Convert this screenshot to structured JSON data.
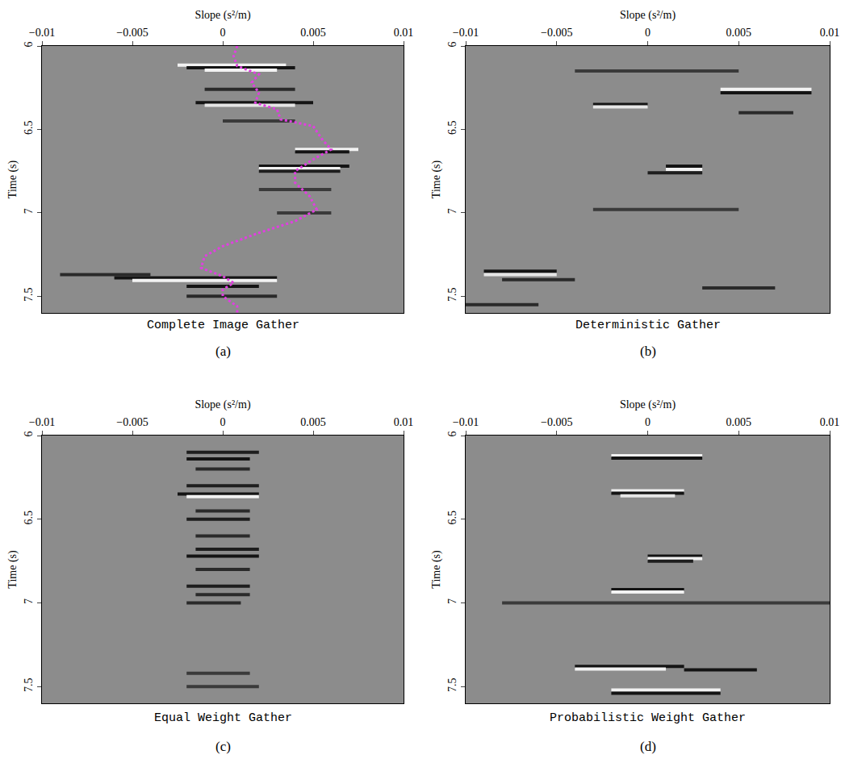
{
  "chart_data": [
    {
      "type": "image",
      "title": "Complete Image Gather",
      "panel": "(a)",
      "xlabel": "Slope (s²/m)",
      "ylabel": "Time (s)",
      "xlim": [
        -0.01,
        0.01
      ],
      "ylim": [
        6,
        7.6
      ],
      "xticks": [
        {
          "value": -0.01,
          "label": "−0.01"
        },
        {
          "value": -0.005,
          "label": "−0.005"
        },
        0,
        0.005,
        0.01
      ],
      "yticks": [
        6,
        6.5,
        7,
        7.5
      ],
      "events": [
        {
          "time": 6.115,
          "slope": [
            -0.0025,
            0.0035
          ],
          "color": "#f2f2f2"
        },
        {
          "time": 6.13,
          "slope": [
            -0.002,
            0.004
          ],
          "color": "#141414"
        },
        {
          "time": 6.145,
          "slope": [
            -0.001,
            0.003
          ],
          "color": "#f2f2f2"
        },
        {
          "time": 6.26,
          "slope": [
            -0.001,
            0.004
          ],
          "color": "#2a2a2a"
        },
        {
          "time": 6.34,
          "slope": [
            -0.0015,
            0.005
          ],
          "color": "#141414"
        },
        {
          "time": 6.355,
          "slope": [
            -0.001,
            0.004
          ],
          "color": "#e6e6e6"
        },
        {
          "time": 6.45,
          "slope": [
            0.0,
            0.004
          ],
          "color": "#3a3a3a"
        },
        {
          "time": 6.62,
          "slope": [
            0.004,
            0.0075
          ],
          "color": "#f2f2f2"
        },
        {
          "time": 6.635,
          "slope": [
            0.004,
            0.007
          ],
          "color": "#141414"
        },
        {
          "time": 6.72,
          "slope": [
            0.002,
            0.007
          ],
          "color": "#141414"
        },
        {
          "time": 6.735,
          "slope": [
            0.002,
            0.0065
          ],
          "color": "#f2f2f2"
        },
        {
          "time": 6.75,
          "slope": [
            0.002,
            0.0065
          ],
          "color": "#1e1e1e"
        },
        {
          "time": 6.86,
          "slope": [
            0.002,
            0.006
          ],
          "color": "#3a3a3a"
        },
        {
          "time": 7.0,
          "slope": [
            0.003,
            0.006
          ],
          "color": "#3a3a3a"
        },
        {
          "time": 7.37,
          "slope": [
            -0.009,
            -0.004
          ],
          "color": "#2a2a2a"
        },
        {
          "time": 7.39,
          "slope": [
            -0.006,
            0.003
          ],
          "color": "#141414"
        },
        {
          "time": 7.405,
          "slope": [
            -0.005,
            0.003
          ],
          "color": "#f2f2f2"
        },
        {
          "time": 7.44,
          "slope": [
            -0.002,
            0.002
          ],
          "color": "#141414"
        },
        {
          "time": 7.5,
          "slope": [
            -0.002,
            0.003
          ],
          "color": "#2a2a2a"
        }
      ],
      "series": [
        {
          "color": "#e040e0",
          "line_style": "dotted",
          "x": [
            0.0008,
            0.0006,
            0.0008,
            0.002,
            0.0016,
            0.002,
            0.0018,
            0.003,
            0.0032,
            0.005,
            0.0055,
            0.006,
            0.005,
            0.004,
            0.004,
            0.0048,
            0.0052,
            0.004,
            0.002,
            0.0,
            -0.001,
            -0.0012,
            0.0,
            0.0006,
            0.0,
            0.0,
            0.0008,
            0.0008
          ],
          "y": [
            6.0,
            6.06,
            6.12,
            6.17,
            6.22,
            6.28,
            6.34,
            6.38,
            6.44,
            6.48,
            6.56,
            6.62,
            6.68,
            6.75,
            6.82,
            6.9,
            6.98,
            7.05,
            7.12,
            7.2,
            7.26,
            7.33,
            7.38,
            7.42,
            7.46,
            7.5,
            7.56,
            7.6
          ]
        }
      ]
    },
    {
      "type": "image",
      "title": "Deterministic Gather",
      "panel": "(b)",
      "xlabel": "Slope (s²/m)",
      "ylabel": "Time (s)",
      "xlim": [
        -0.01,
        0.01
      ],
      "ylim": [
        6,
        7.6
      ],
      "xticks": [
        {
          "value": -0.01,
          "label": "−0.01"
        },
        {
          "value": -0.005,
          "label": "−0.005"
        },
        0,
        0.005,
        0.01
      ],
      "yticks": [
        6,
        6.5,
        7,
        7.5
      ],
      "events": [
        {
          "time": 6.15,
          "slope": [
            -0.004,
            0.005
          ],
          "color": "#3a3a3a"
        },
        {
          "time": 6.26,
          "slope": [
            0.004,
            0.009
          ],
          "color": "#f2f2f2"
        },
        {
          "time": 6.28,
          "slope": [
            0.004,
            0.009
          ],
          "color": "#141414"
        },
        {
          "time": 6.35,
          "slope": [
            -0.003,
            0.0
          ],
          "color": "#141414"
        },
        {
          "time": 6.365,
          "slope": [
            -0.003,
            0.0
          ],
          "color": "#e6e6e6"
        },
        {
          "time": 6.4,
          "slope": [
            0.005,
            0.008
          ],
          "color": "#2a2a2a"
        },
        {
          "time": 6.72,
          "slope": [
            0.001,
            0.003
          ],
          "color": "#141414"
        },
        {
          "time": 6.74,
          "slope": [
            0.001,
            0.003
          ],
          "color": "#f2f2f2"
        },
        {
          "time": 6.76,
          "slope": [
            0.0,
            0.003
          ],
          "color": "#1e1e1e"
        },
        {
          "time": 6.98,
          "slope": [
            -0.003,
            0.005
          ],
          "color": "#3a3a3a"
        },
        {
          "time": 7.35,
          "slope": [
            -0.009,
            -0.005
          ],
          "color": "#141414"
        },
        {
          "time": 7.37,
          "slope": [
            -0.009,
            -0.005
          ],
          "color": "#e6e6e6"
        },
        {
          "time": 7.4,
          "slope": [
            -0.008,
            -0.004
          ],
          "color": "#2a2a2a"
        },
        {
          "time": 7.45,
          "slope": [
            0.003,
            0.007
          ],
          "color": "#2a2a2a"
        },
        {
          "time": 7.55,
          "slope": [
            -0.01,
            -0.006
          ],
          "color": "#2a2a2a"
        }
      ]
    },
    {
      "type": "image",
      "title": "Equal Weight Gather",
      "panel": "(c)",
      "xlabel": "Slope (s²/m)",
      "ylabel": "Time (s)",
      "xlim": [
        -0.01,
        0.01
      ],
      "ylim": [
        6,
        7.6
      ],
      "xticks": [
        {
          "value": -0.01,
          "label": "−0.01"
        },
        {
          "value": -0.005,
          "label": "−0.005"
        },
        0,
        0.005,
        0.01
      ],
      "yticks": [
        6,
        6.5,
        7,
        7.5
      ],
      "events": [
        {
          "time": 6.1,
          "slope": [
            -0.002,
            0.002
          ],
          "color": "#1e1e1e"
        },
        {
          "time": 6.14,
          "slope": [
            -0.002,
            0.0015
          ],
          "color": "#141414"
        },
        {
          "time": 6.2,
          "slope": [
            -0.0015,
            0.0015
          ],
          "color": "#2a2a2a"
        },
        {
          "time": 6.3,
          "slope": [
            -0.002,
            0.002
          ],
          "color": "#1e1e1e"
        },
        {
          "time": 6.35,
          "slope": [
            -0.0025,
            0.002
          ],
          "color": "#141414"
        },
        {
          "time": 6.365,
          "slope": [
            -0.002,
            0.002
          ],
          "color": "#f2f2f2"
        },
        {
          "time": 6.45,
          "slope": [
            -0.0015,
            0.0015
          ],
          "color": "#2a2a2a"
        },
        {
          "time": 6.5,
          "slope": [
            -0.002,
            0.0015
          ],
          "color": "#1e1e1e"
        },
        {
          "time": 6.6,
          "slope": [
            -0.0015,
            0.0015
          ],
          "color": "#2a2a2a"
        },
        {
          "time": 6.68,
          "slope": [
            -0.0015,
            0.002
          ],
          "color": "#1e1e1e"
        },
        {
          "time": 6.72,
          "slope": [
            -0.002,
            0.002
          ],
          "color": "#141414"
        },
        {
          "time": 6.8,
          "slope": [
            -0.0015,
            0.0015
          ],
          "color": "#2a2a2a"
        },
        {
          "time": 6.9,
          "slope": [
            -0.002,
            0.0015
          ],
          "color": "#1e1e1e"
        },
        {
          "time": 6.95,
          "slope": [
            -0.0015,
            0.0015
          ],
          "color": "#2a2a2a"
        },
        {
          "time": 7.0,
          "slope": [
            -0.002,
            0.001
          ],
          "color": "#2a2a2a"
        },
        {
          "time": 7.42,
          "slope": [
            -0.002,
            0.0015
          ],
          "color": "#3a3a3a"
        },
        {
          "time": 7.5,
          "slope": [
            -0.002,
            0.002
          ],
          "color": "#3a3a3a"
        }
      ]
    },
    {
      "type": "image",
      "title": "Probabilistic Weight Gather",
      "panel": "(d)",
      "xlabel": "Slope (s²/m)",
      "ylabel": "Time (s)",
      "xlim": [
        -0.01,
        0.01
      ],
      "ylim": [
        6,
        7.6
      ],
      "xticks": [
        {
          "value": -0.01,
          "label": "−0.01"
        },
        {
          "value": -0.005,
          "label": "−0.005"
        },
        0,
        0.005,
        0.01
      ],
      "yticks": [
        6,
        6.5,
        7,
        7.5
      ],
      "events": [
        {
          "time": 6.12,
          "slope": [
            -0.002,
            0.003
          ],
          "color": "#f2f2f2"
        },
        {
          "time": 6.135,
          "slope": [
            -0.002,
            0.003
          ],
          "color": "#141414"
        },
        {
          "time": 6.33,
          "slope": [
            -0.002,
            0.002
          ],
          "color": "#f2f2f2"
        },
        {
          "time": 6.345,
          "slope": [
            -0.002,
            0.002
          ],
          "color": "#141414"
        },
        {
          "time": 6.36,
          "slope": [
            -0.0015,
            0.0015
          ],
          "color": "#e6e6e6"
        },
        {
          "time": 6.72,
          "slope": [
            0.0,
            0.003
          ],
          "color": "#141414"
        },
        {
          "time": 6.735,
          "slope": [
            0.0,
            0.003
          ],
          "color": "#f2f2f2"
        },
        {
          "time": 6.75,
          "slope": [
            0.0,
            0.0025
          ],
          "color": "#1e1e1e"
        },
        {
          "time": 6.92,
          "slope": [
            -0.002,
            0.002
          ],
          "color": "#141414"
        },
        {
          "time": 6.935,
          "slope": [
            -0.002,
            0.002
          ],
          "color": "#f2f2f2"
        },
        {
          "time": 7.0,
          "slope": [
            -0.008,
            0.01
          ],
          "color": "#3a3a3a"
        },
        {
          "time": 7.38,
          "slope": [
            -0.004,
            0.002
          ],
          "color": "#141414"
        },
        {
          "time": 7.395,
          "slope": [
            -0.004,
            0.001
          ],
          "color": "#f2f2f2"
        },
        {
          "time": 7.4,
          "slope": [
            0.002,
            0.006
          ],
          "color": "#141414"
        },
        {
          "time": 7.52,
          "slope": [
            -0.002,
            0.004
          ],
          "color": "#f2f2f2"
        },
        {
          "time": 7.54,
          "slope": [
            -0.002,
            0.004
          ],
          "color": "#141414"
        }
      ]
    }
  ]
}
